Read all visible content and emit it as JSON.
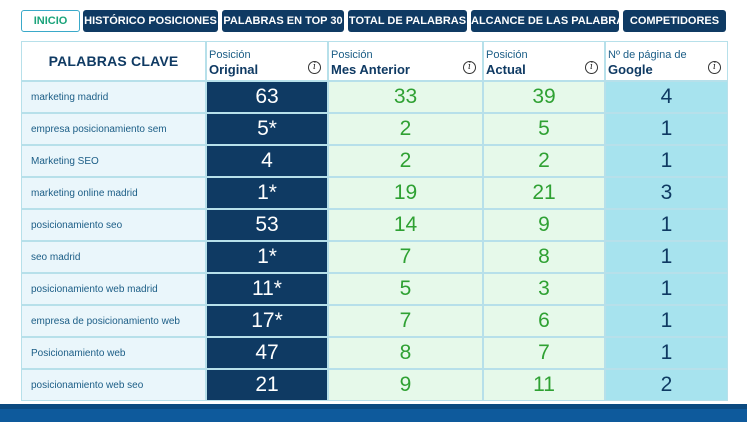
{
  "tabs": [
    {
      "label": "INICIO",
      "active": true
    },
    {
      "label": "HISTÓRICO POSICIONES",
      "active": false
    },
    {
      "label": "PALABRAS EN TOP 30",
      "active": false
    },
    {
      "label": "TOTAL DE PALABRAS",
      "active": false
    },
    {
      "label": "ALCANCE DE LAS PALABRAS",
      "active": false
    },
    {
      "label": "COMPETIDORES",
      "active": false
    }
  ],
  "table": {
    "headers": {
      "keyword": "PALABRAS CLAVE",
      "original": {
        "small": "Posición",
        "big": "Original",
        "icon": "info-icon"
      },
      "previous": {
        "small": "Posición",
        "big": "Mes Anterior",
        "icon": "info-icon"
      },
      "current": {
        "small": "Posición",
        "big": "Actual",
        "icon": "info-icon"
      },
      "page": {
        "small": "Nº de página de",
        "big": "Google",
        "icon": "info-icon"
      }
    },
    "rows": [
      {
        "keyword": "marketing madrid",
        "original": "63",
        "previous": "33",
        "current": "39",
        "page": "4"
      },
      {
        "keyword": "empresa posicionamiento sem",
        "original": "5*",
        "previous": "2",
        "current": "5",
        "page": "1"
      },
      {
        "keyword": "Marketing SEO",
        "original": "4",
        "previous": "2",
        "current": "2",
        "page": "1"
      },
      {
        "keyword": "marketing online madrid",
        "original": "1*",
        "previous": "19",
        "current": "21",
        "page": "3"
      },
      {
        "keyword": "posicionamiento seo",
        "original": "53",
        "previous": "14",
        "current": "9",
        "page": "1"
      },
      {
        "keyword": "seo madrid",
        "original": "1*",
        "previous": "7",
        "current": "8",
        "page": "1"
      },
      {
        "keyword": "posicionamiento web madrid",
        "original": "11*",
        "previous": "5",
        "current": "3",
        "page": "1"
      },
      {
        "keyword": "empresa de posicionamiento web",
        "original": "17*",
        "previous": "7",
        "current": "6",
        "page": "1"
      },
      {
        "keyword": "Posicionamiento web",
        "original": "47",
        "previous": "8",
        "current": "7",
        "page": "1"
      },
      {
        "keyword": "posicionamiento web seo",
        "original": "21",
        "previous": "9",
        "current": "11",
        "page": "2"
      }
    ]
  },
  "colors": {
    "navy": "#0f3a63",
    "active_tab_text": "#1aa37a",
    "green_text": "#2fa133",
    "page_column_bg": "#a7e3ee"
  }
}
